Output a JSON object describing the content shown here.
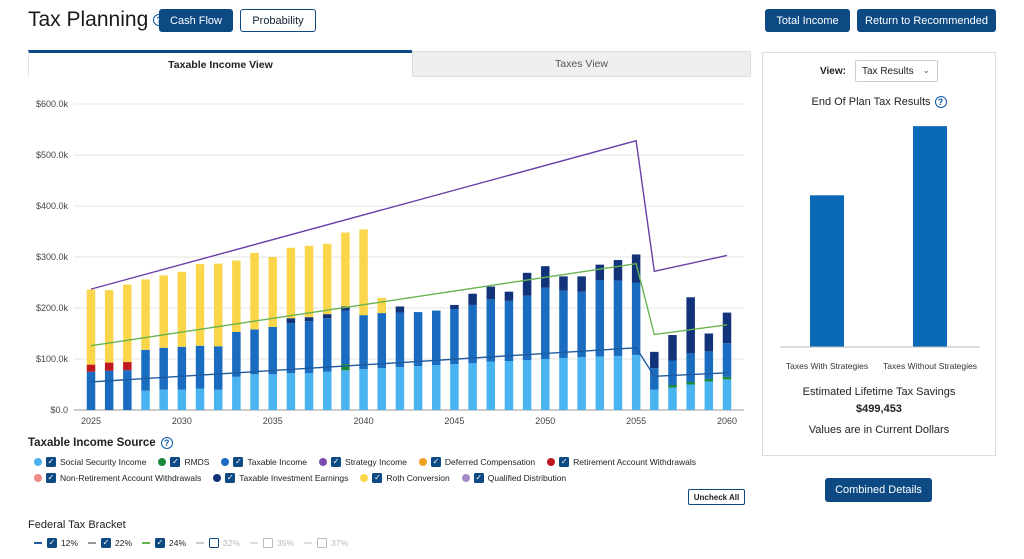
{
  "header": {
    "title": "Tax Planning",
    "cash_flow_label": "Cash Flow",
    "probability_label": "Probability",
    "total_income_label": "Total Income",
    "return_label": "Return to Recommended"
  },
  "tabs": [
    {
      "label": "Taxable Income View",
      "active": true
    },
    {
      "label": "Taxes View",
      "active": false
    }
  ],
  "chart_data": {
    "type": "bar",
    "stacked": true,
    "x": [
      2025,
      2026,
      2027,
      2028,
      2029,
      2030,
      2031,
      2032,
      2033,
      2034,
      2035,
      2036,
      2037,
      2038,
      2039,
      2040,
      2041,
      2042,
      2043,
      2044,
      2045,
      2046,
      2047,
      2048,
      2049,
      2050,
      2051,
      2052,
      2053,
      2054,
      2055,
      2056,
      2057,
      2058,
      2059,
      2060
    ],
    "x_ticks": [
      "2025",
      "2030",
      "2035",
      "2040",
      "2045",
      "2050",
      "2055",
      "2060"
    ],
    "y_ticks": [
      "$0.0",
      "$100.0k",
      "$200.0k",
      "$300.0k",
      "$400.0k",
      "$500.0k",
      "$600.0k"
    ],
    "ylim": [
      0,
      600
    ],
    "series": [
      {
        "name": "Social Security Income",
        "color": "#4ab4f0",
        "values": [
          0,
          0,
          0,
          38,
          40,
          40,
          42,
          40,
          65,
          70,
          70,
          72,
          72,
          75,
          78,
          80,
          82,
          84,
          86,
          88,
          90,
          92,
          95,
          96,
          98,
          100,
          102,
          104,
          105,
          106,
          108,
          40,
          44,
          50,
          56,
          60
        ]
      },
      {
        "name": "RMDS",
        "color": "#1a8a3a",
        "values": [
          0,
          0,
          0,
          0,
          0,
          0,
          0,
          0,
          0,
          0,
          0,
          0,
          0,
          0,
          12,
          0,
          0,
          0,
          0,
          0,
          0,
          0,
          0,
          0,
          0,
          0,
          0,
          0,
          0,
          0,
          0,
          0,
          5,
          5,
          5,
          5
        ]
      },
      {
        "name": "Taxable Income",
        "color": "#1a6cc0",
        "values": [
          75,
          77,
          78,
          80,
          82,
          84,
          84,
          85,
          88,
          88,
          93,
          98,
          102,
          105,
          105,
          106,
          108,
          107,
          106,
          107,
          108,
          114,
          122,
          118,
          126,
          140,
          132,
          128,
          150,
          148,
          142,
          42,
          48,
          56,
          54,
          66
        ]
      },
      {
        "name": "Retirement Account Withdrawals",
        "color": "#c01820",
        "values": [
          14,
          16,
          16,
          0,
          0,
          0,
          0,
          0,
          0,
          0,
          0,
          0,
          0,
          0,
          0,
          0,
          0,
          0,
          0,
          0,
          0,
          0,
          0,
          0,
          0,
          0,
          0,
          0,
          0,
          0,
          0,
          0,
          0,
          0,
          0,
          0
        ]
      },
      {
        "name": "Taxable Investment Earnings",
        "color": "#12337a",
        "values": [
          0,
          0,
          0,
          0,
          0,
          0,
          0,
          0,
          0,
          0,
          0,
          10,
          8,
          8,
          8,
          0,
          0,
          12,
          0,
          0,
          8,
          22,
          25,
          18,
          45,
          42,
          28,
          30,
          30,
          40,
          55,
          32,
          50,
          110,
          35,
          60
        ]
      },
      {
        "name": "Roth Conversion",
        "color": "#fbd54a",
        "values": [
          147,
          142,
          152,
          138,
          142,
          147,
          160,
          162,
          140,
          150,
          137,
          138,
          140,
          138,
          145,
          168,
          30,
          0,
          0,
          0,
          0,
          0,
          0,
          0,
          0,
          0,
          0,
          0,
          0,
          0,
          0,
          0,
          0,
          0,
          0,
          0
        ]
      }
    ],
    "lines": [
      {
        "name": "Strategy Income",
        "color": "#6a3fa8",
        "points": [
          [
            2025,
            237
          ],
          [
            2055,
            528
          ],
          [
            2056,
            272
          ],
          [
            2060,
            303
          ]
        ]
      },
      {
        "name": "24% Bracket",
        "color": "#66b350",
        "points": [
          [
            2025,
            126
          ],
          [
            2055,
            287
          ],
          [
            2056,
            148
          ],
          [
            2060,
            167
          ]
        ]
      },
      {
        "name": "22% Bracket",
        "color": "#1f5a9e",
        "points": [
          [
            2025,
            55
          ],
          [
            2055,
            122
          ],
          [
            2056,
            66
          ],
          [
            2060,
            73
          ]
        ]
      }
    ]
  },
  "legend": {
    "title": "Taxable Income Source",
    "items": [
      {
        "label": "Social Security Income",
        "color": "#4ab4f0"
      },
      {
        "label": "RMDS",
        "color": "#1a8a3a"
      },
      {
        "label": "Taxable Income",
        "color": "#1a6cc0"
      },
      {
        "label": "Strategy Income",
        "color": "#7d4cb0"
      },
      {
        "label": "Deferred Compensation",
        "color": "#f0a020"
      },
      {
        "label": "Retirement Account Withdrawals",
        "color": "#c01820"
      },
      {
        "label": "Non-Retirement Account Withdrawals",
        "color": "#f08a8a"
      },
      {
        "label": "Taxable Investment Earnings",
        "color": "#12337a"
      },
      {
        "label": "Roth Conversion",
        "color": "#fbd54a"
      },
      {
        "label": "Qualified Distribution",
        "color": "#a58bc8"
      }
    ],
    "uncheck_all_label": "Uncheck All"
  },
  "brackets": {
    "title": "Federal Tax Bracket",
    "items": [
      {
        "label": "12%",
        "checked": true,
        "color": "#1f5a9e"
      },
      {
        "label": "22%",
        "checked": true,
        "color": "#999999"
      },
      {
        "label": "24%",
        "checked": true,
        "color": "#66b350"
      },
      {
        "label": "32%",
        "checked": false,
        "color": "#cccccc"
      },
      {
        "label": "35%",
        "checked": false,
        "color": "#cccccc"
      },
      {
        "label": "37%",
        "checked": false,
        "color": "#cccccc"
      }
    ]
  },
  "right_panel": {
    "view_label": "View:",
    "view_value": "Tax Results",
    "title": "End Of Plan Tax Results",
    "bar_labels": [
      "Taxes With Strategies",
      "Taxes Without Strategies"
    ],
    "bar_values": [
      340,
      495
    ],
    "savings_label": "Estimated Lifetime Tax Savings",
    "savings_value": "$499,453",
    "note": "Values are in Current Dollars",
    "combined_label": "Combined Details"
  }
}
